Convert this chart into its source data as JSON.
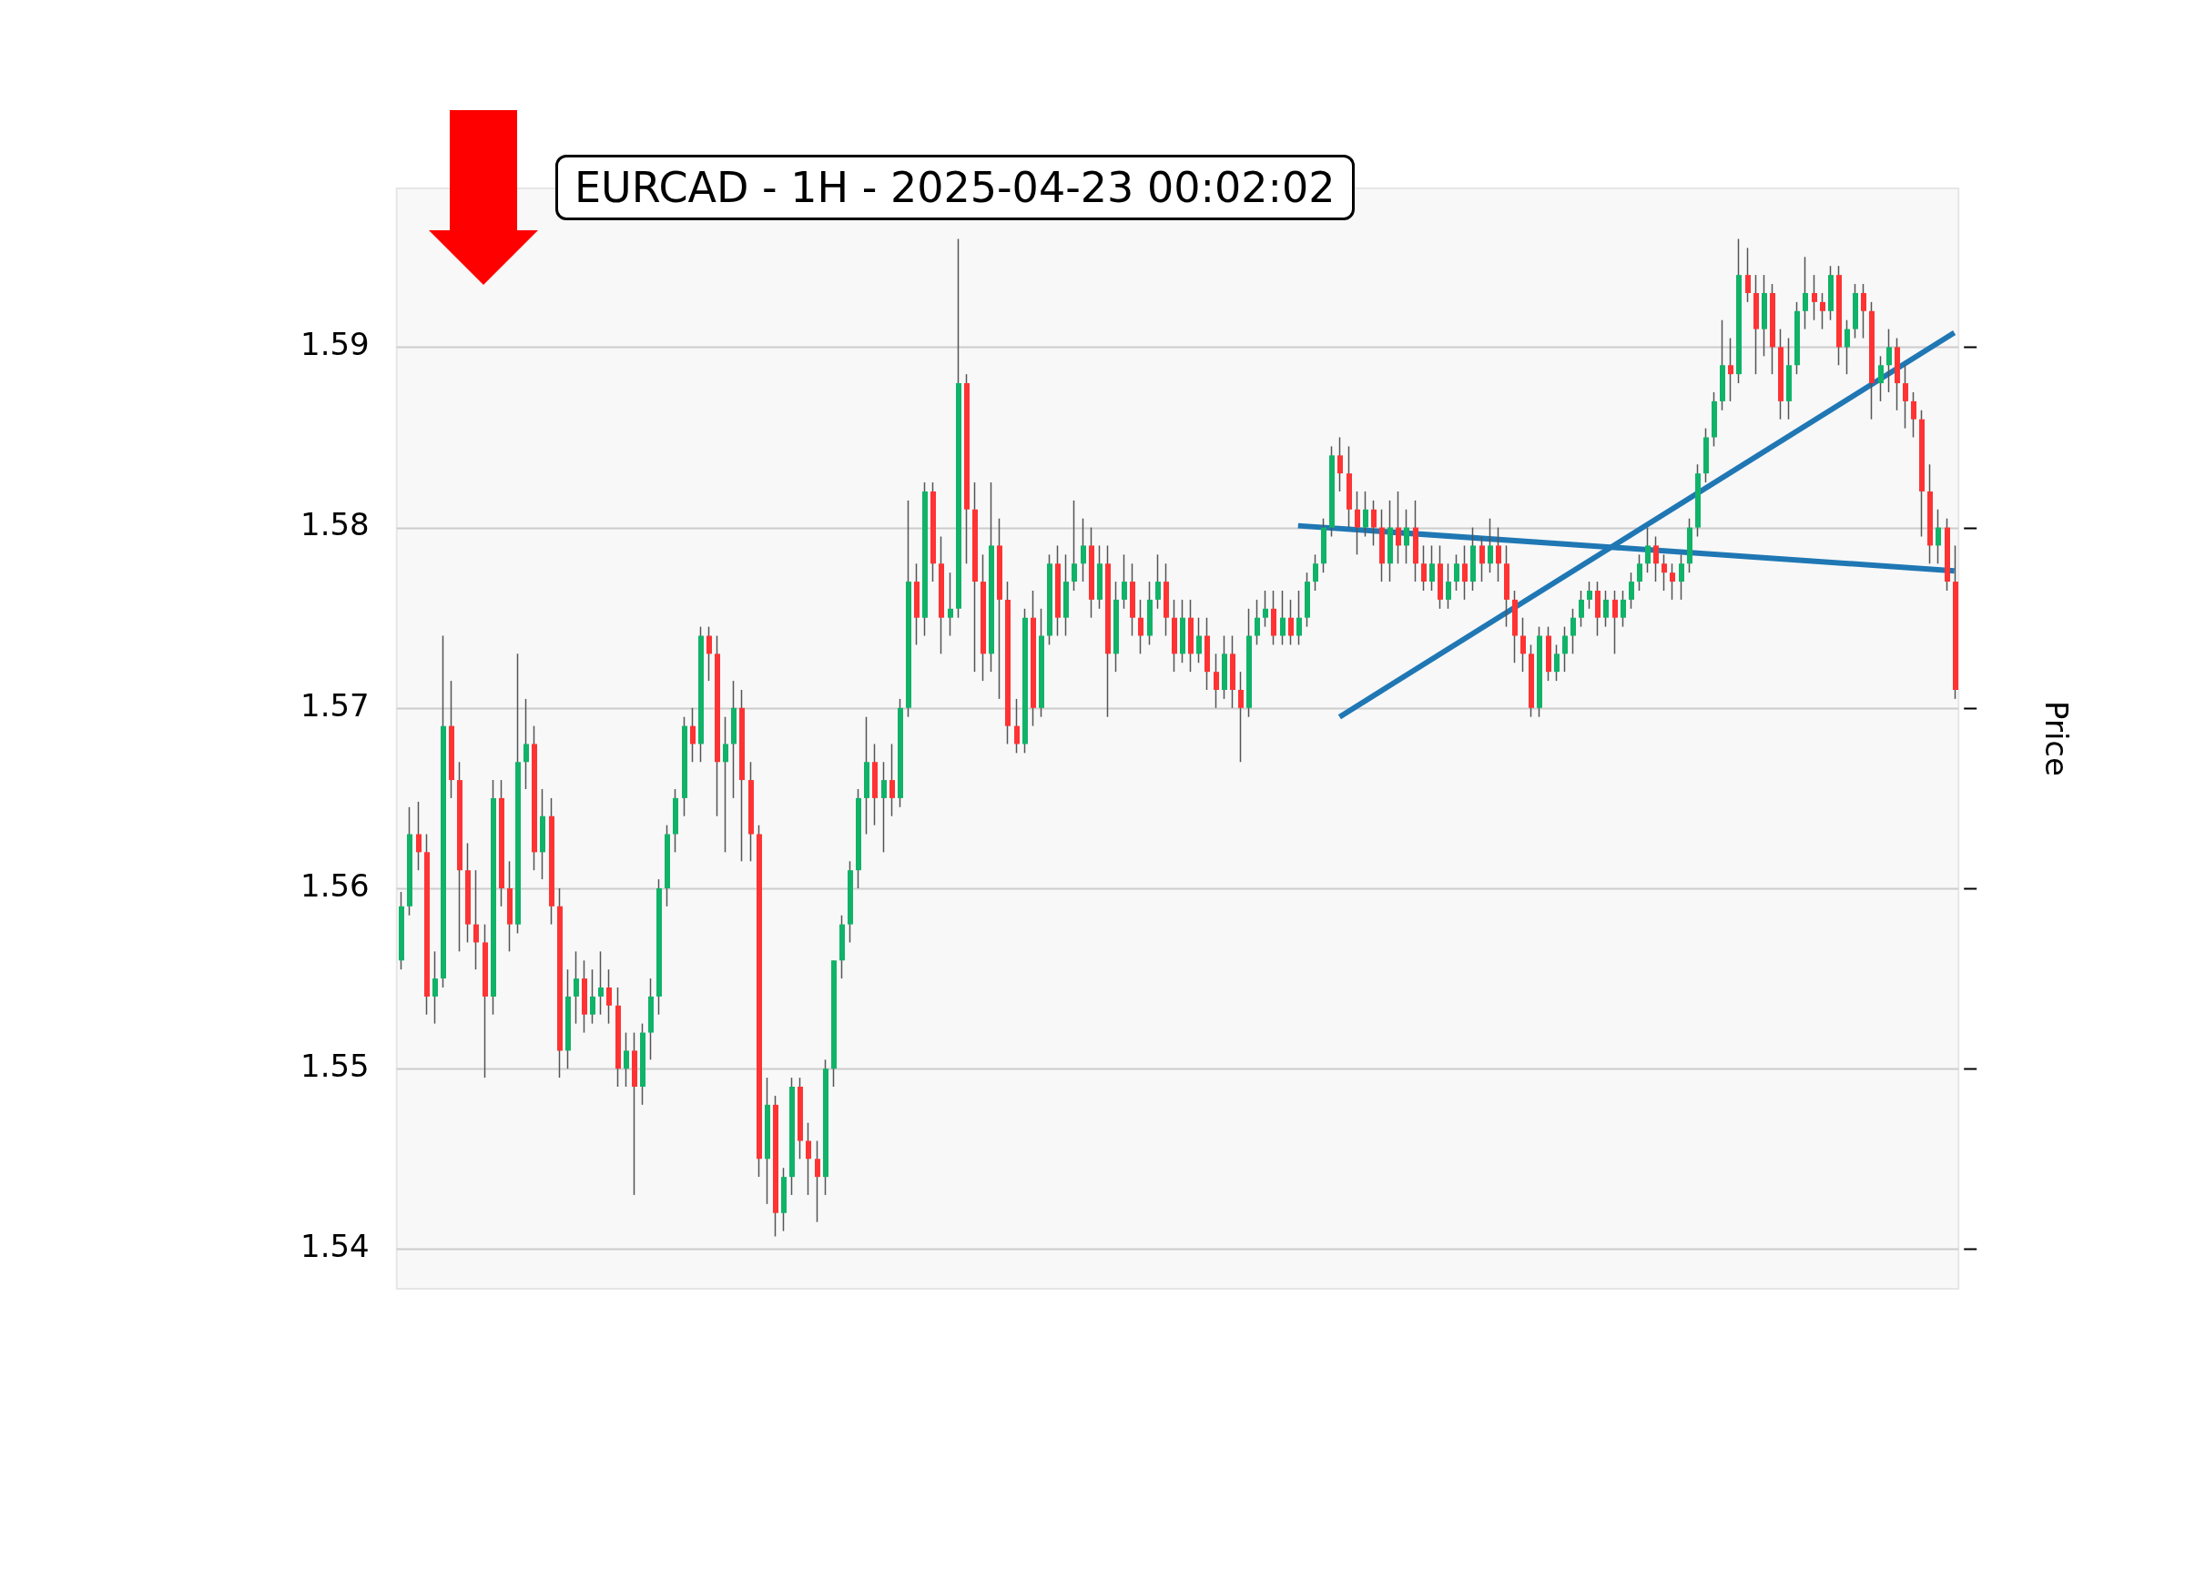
{
  "chart_data": {
    "type": "candlestick",
    "title": "EURCAD - 1H - 2025-04-23 00:02:02",
    "ylabel": "Price",
    "categories": [
      null,
      null,
      null,
      null,
      null,
      null,
      null,
      null,
      null,
      null,
      null,
      null,
      null,
      null,
      null,
      null,
      null,
      null,
      null,
      null,
      null,
      null,
      null,
      null,
      null,
      null,
      null,
      null,
      null,
      null,
      null,
      null,
      null,
      null,
      null,
      null,
      null,
      null,
      null,
      null,
      null,
      null,
      null,
      null,
      null,
      null,
      null,
      null,
      null,
      null,
      null,
      null,
      null,
      null,
      null,
      null,
      null,
      null,
      null,
      null,
      null,
      null,
      null,
      null,
      null,
      null,
      null,
      null,
      null,
      null,
      null,
      null,
      null,
      null,
      null,
      null,
      null,
      null,
      null,
      null,
      null,
      null,
      null,
      null,
      null,
      null,
      null,
      null,
      null,
      null,
      null,
      null,
      null,
      null,
      null,
      null,
      null,
      null,
      null,
      null,
      null,
      null,
      null,
      null,
      null,
      null,
      null,
      null,
      null,
      null,
      null,
      null,
      null,
      null,
      null,
      null,
      null,
      null,
      null,
      null,
      null,
      null,
      null,
      null,
      null,
      null,
      null,
      null,
      null,
      null,
      null,
      null,
      null,
      null,
      null,
      null,
      null,
      null,
      null,
      null,
      null,
      null,
      null,
      null,
      null,
      null,
      null,
      null,
      null,
      null,
      null,
      null,
      null,
      null,
      null,
      null,
      null,
      null,
      null,
      null,
      null,
      null,
      null,
      null,
      null,
      null,
      null,
      null,
      null,
      null,
      null,
      null,
      null,
      null,
      null,
      null,
      null,
      null,
      null,
      null,
      null,
      null,
      null,
      null,
      null,
      null,
      null,
      null
    ],
    "ohlc": [
      [
        1.556,
        1.5598,
        1.5555,
        1.559
      ],
      [
        1.559,
        1.5645,
        1.5585,
        1.563
      ],
      [
        1.563,
        1.5648,
        1.561,
        1.562
      ],
      [
        1.562,
        1.563,
        1.553,
        1.554
      ],
      [
        1.554,
        1.5565,
        1.5525,
        1.555
      ],
      [
        1.555,
        1.574,
        1.5545,
        1.569
      ],
      [
        1.569,
        1.5715,
        1.565,
        1.566
      ],
      [
        1.566,
        1.567,
        1.5565,
        1.561
      ],
      [
        1.561,
        1.5625,
        1.557,
        1.558
      ],
      [
        1.558,
        1.561,
        1.5555,
        1.557
      ],
      [
        1.557,
        1.558,
        1.5495,
        1.554
      ],
      [
        1.554,
        1.566,
        1.553,
        1.565
      ],
      [
        1.565,
        1.566,
        1.559,
        1.56
      ],
      [
        1.56,
        1.5615,
        1.5565,
        1.558
      ],
      [
        1.558,
        1.573,
        1.5575,
        1.567
      ],
      [
        1.567,
        1.5705,
        1.5655,
        1.568
      ],
      [
        1.568,
        1.569,
        1.561,
        1.562
      ],
      [
        1.562,
        1.5655,
        1.5605,
        1.564
      ],
      [
        1.564,
        1.565,
        1.558,
        1.559
      ],
      [
        1.559,
        1.56,
        1.5495,
        1.551
      ],
      [
        1.551,
        1.5555,
        1.55,
        1.554
      ],
      [
        1.554,
        1.5565,
        1.5525,
        1.555
      ],
      [
        1.555,
        1.556,
        1.552,
        1.553
      ],
      [
        1.553,
        1.5555,
        1.5525,
        1.554
      ],
      [
        1.554,
        1.5565,
        1.553,
        1.5545
      ],
      [
        1.5545,
        1.5555,
        1.5525,
        1.5535
      ],
      [
        1.5535,
        1.5545,
        1.549,
        1.55
      ],
      [
        1.55,
        1.552,
        1.549,
        1.551
      ],
      [
        1.551,
        1.552,
        1.543,
        1.549
      ],
      [
        1.549,
        1.5525,
        1.548,
        1.552
      ],
      [
        1.552,
        1.555,
        1.5505,
        1.554
      ],
      [
        1.554,
        1.5605,
        1.553,
        1.56
      ],
      [
        1.56,
        1.5635,
        1.559,
        1.563
      ],
      [
        1.563,
        1.5655,
        1.562,
        1.565
      ],
      [
        1.565,
        1.5695,
        1.564,
        1.569
      ],
      [
        1.569,
        1.57,
        1.567,
        1.568
      ],
      [
        1.568,
        1.5745,
        1.567,
        1.574
      ],
      [
        1.574,
        1.5745,
        1.5715,
        1.573
      ],
      [
        1.573,
        1.574,
        1.564,
        1.567
      ],
      [
        1.567,
        1.5695,
        1.562,
        1.568
      ],
      [
        1.568,
        1.5715,
        1.565,
        1.57
      ],
      [
        1.57,
        1.571,
        1.5615,
        1.566
      ],
      [
        1.566,
        1.567,
        1.5615,
        1.563
      ],
      [
        1.563,
        1.5635,
        1.544,
        1.545
      ],
      [
        1.545,
        1.5495,
        1.5425,
        1.548
      ],
      [
        1.548,
        1.5485,
        1.5407,
        1.542
      ],
      [
        1.542,
        1.5445,
        1.541,
        1.544
      ],
      [
        1.544,
        1.5495,
        1.543,
        1.549
      ],
      [
        1.549,
        1.5495,
        1.545,
        1.546
      ],
      [
        1.546,
        1.547,
        1.543,
        1.545
      ],
      [
        1.545,
        1.546,
        1.5415,
        1.544
      ],
      [
        1.544,
        1.5505,
        1.543,
        1.55
      ],
      [
        1.55,
        1.556,
        1.549,
        1.556
      ],
      [
        1.556,
        1.5585,
        1.555,
        1.558
      ],
      [
        1.558,
        1.5615,
        1.557,
        1.561
      ],
      [
        1.561,
        1.5655,
        1.56,
        1.565
      ],
      [
        1.565,
        1.5695,
        1.563,
        1.567
      ],
      [
        1.567,
        1.568,
        1.5635,
        1.565
      ],
      [
        1.565,
        1.567,
        1.562,
        1.566
      ],
      [
        1.566,
        1.568,
        1.564,
        1.565
      ],
      [
        1.565,
        1.5705,
        1.5645,
        1.57
      ],
      [
        1.57,
        1.5815,
        1.5695,
        1.577
      ],
      [
        1.577,
        1.578,
        1.5735,
        1.575
      ],
      [
        1.575,
        1.5825,
        1.574,
        1.582
      ],
      [
        1.582,
        1.5825,
        1.577,
        1.578
      ],
      [
        1.578,
        1.5795,
        1.573,
        1.575
      ],
      [
        1.575,
        1.5775,
        1.574,
        1.5755
      ],
      [
        1.5755,
        1.596,
        1.575,
        1.588
      ],
      [
        1.588,
        1.5885,
        1.578,
        1.581
      ],
      [
        1.581,
        1.5825,
        1.572,
        1.577
      ],
      [
        1.577,
        1.5785,
        1.5715,
        1.573
      ],
      [
        1.573,
        1.5825,
        1.572,
        1.579
      ],
      [
        1.579,
        1.5805,
        1.5705,
        1.576
      ],
      [
        1.576,
        1.577,
        1.568,
        1.569
      ],
      [
        1.569,
        1.5705,
        1.5675,
        1.568
      ],
      [
        1.568,
        1.5755,
        1.5675,
        1.575
      ],
      [
        1.575,
        1.5765,
        1.569,
        1.57
      ],
      [
        1.57,
        1.5755,
        1.5695,
        1.574
      ],
      [
        1.574,
        1.5785,
        1.5735,
        1.578
      ],
      [
        1.578,
        1.579,
        1.574,
        1.575
      ],
      [
        1.575,
        1.5785,
        1.574,
        1.577
      ],
      [
        1.577,
        1.5815,
        1.5765,
        1.578
      ],
      [
        1.578,
        1.5805,
        1.577,
        1.579
      ],
      [
        1.579,
        1.58,
        1.575,
        1.576
      ],
      [
        1.576,
        1.579,
        1.5755,
        1.578
      ],
      [
        1.578,
        1.579,
        1.5695,
        1.573
      ],
      [
        1.573,
        1.577,
        1.572,
        1.576
      ],
      [
        1.576,
        1.5785,
        1.5755,
        1.577
      ],
      [
        1.577,
        1.578,
        1.574,
        1.575
      ],
      [
        1.575,
        1.576,
        1.573,
        1.574
      ],
      [
        1.574,
        1.577,
        1.5735,
        1.576
      ],
      [
        1.576,
        1.5785,
        1.5755,
        1.577
      ],
      [
        1.577,
        1.578,
        1.574,
        1.575
      ],
      [
        1.575,
        1.576,
        1.572,
        1.573
      ],
      [
        1.573,
        1.576,
        1.5725,
        1.575
      ],
      [
        1.575,
        1.576,
        1.572,
        1.573
      ],
      [
        1.573,
        1.575,
        1.5725,
        1.574
      ],
      [
        1.574,
        1.575,
        1.571,
        1.572
      ],
      [
        1.572,
        1.573,
        1.57,
        1.571
      ],
      [
        1.571,
        1.574,
        1.5705,
        1.573
      ],
      [
        1.573,
        1.574,
        1.57,
        1.571
      ],
      [
        1.571,
        1.572,
        1.567,
        1.57
      ],
      [
        1.57,
        1.5755,
        1.5695,
        1.574
      ],
      [
        1.574,
        1.576,
        1.5735,
        1.575
      ],
      [
        1.575,
        1.5765,
        1.5745,
        1.5755
      ],
      [
        1.5755,
        1.5765,
        1.5735,
        1.574
      ],
      [
        1.574,
        1.5765,
        1.5735,
        1.575
      ],
      [
        1.575,
        1.576,
        1.5735,
        1.574
      ],
      [
        1.574,
        1.5765,
        1.5735,
        1.575
      ],
      [
        1.575,
        1.5775,
        1.5745,
        1.577
      ],
      [
        1.577,
        1.5785,
        1.5765,
        1.578
      ],
      [
        1.578,
        1.5805,
        1.5775,
        1.58
      ],
      [
        1.58,
        1.5845,
        1.5795,
        1.584
      ],
      [
        1.584,
        1.585,
        1.582,
        1.583
      ],
      [
        1.583,
        1.5845,
        1.58,
        1.581
      ],
      [
        1.581,
        1.582,
        1.5785,
        1.58
      ],
      [
        1.58,
        1.582,
        1.5795,
        1.581
      ],
      [
        1.581,
        1.5815,
        1.579,
        1.58
      ],
      [
        1.58,
        1.581,
        1.577,
        1.578
      ],
      [
        1.578,
        1.5815,
        1.577,
        1.58
      ],
      [
        1.58,
        1.582,
        1.578,
        1.579
      ],
      [
        1.579,
        1.581,
        1.578,
        1.58
      ],
      [
        1.58,
        1.5815,
        1.577,
        1.578
      ],
      [
        1.578,
        1.579,
        1.5765,
        1.577
      ],
      [
        1.577,
        1.579,
        1.5765,
        1.578
      ],
      [
        1.578,
        1.579,
        1.5755,
        1.576
      ],
      [
        1.576,
        1.578,
        1.5755,
        1.577
      ],
      [
        1.577,
        1.5785,
        1.5765,
        1.578
      ],
      [
        1.578,
        1.579,
        1.576,
        1.577
      ],
      [
        1.577,
        1.58,
        1.5765,
        1.579
      ],
      [
        1.579,
        1.5795,
        1.577,
        1.578
      ],
      [
        1.578,
        1.5805,
        1.5775,
        1.579
      ],
      [
        1.579,
        1.58,
        1.577,
        1.578
      ],
      [
        1.578,
        1.579,
        1.5745,
        1.576
      ],
      [
        1.576,
        1.5765,
        1.5725,
        1.574
      ],
      [
        1.574,
        1.575,
        1.572,
        1.573
      ],
      [
        1.573,
        1.5735,
        1.5695,
        1.57
      ],
      [
        1.57,
        1.5745,
        1.5695,
        1.574
      ],
      [
        1.574,
        1.5745,
        1.5715,
        1.572
      ],
      [
        1.572,
        1.5735,
        1.5715,
        1.573
      ],
      [
        1.573,
        1.5745,
        1.572,
        1.574
      ],
      [
        1.574,
        1.5755,
        1.573,
        1.575
      ],
      [
        1.575,
        1.5765,
        1.5745,
        1.576
      ],
      [
        1.576,
        1.577,
        1.5755,
        1.5765
      ],
      [
        1.5765,
        1.577,
        1.574,
        1.575
      ],
      [
        1.575,
        1.5765,
        1.5745,
        1.576
      ],
      [
        1.576,
        1.5765,
        1.573,
        1.575
      ],
      [
        1.575,
        1.5765,
        1.5745,
        1.576
      ],
      [
        1.576,
        1.5775,
        1.5755,
        1.577
      ],
      [
        1.577,
        1.5785,
        1.5765,
        1.578
      ],
      [
        1.578,
        1.58,
        1.5775,
        1.579
      ],
      [
        1.579,
        1.5795,
        1.577,
        1.578
      ],
      [
        1.578,
        1.5785,
        1.5765,
        1.5775
      ],
      [
        1.5775,
        1.578,
        1.576,
        1.577
      ],
      [
        1.577,
        1.5785,
        1.576,
        1.578
      ],
      [
        1.578,
        1.5805,
        1.5775,
        1.58
      ],
      [
        1.58,
        1.5835,
        1.5795,
        1.583
      ],
      [
        1.583,
        1.5855,
        1.5825,
        1.585
      ],
      [
        1.585,
        1.5875,
        1.5845,
        1.587
      ],
      [
        1.587,
        1.5915,
        1.5865,
        1.589
      ],
      [
        1.589,
        1.5905,
        1.587,
        1.5885
      ],
      [
        1.5885,
        1.596,
        1.588,
        1.594
      ],
      [
        1.594,
        1.5955,
        1.5925,
        1.593
      ],
      [
        1.593,
        1.594,
        1.5885,
        1.591
      ],
      [
        1.591,
        1.594,
        1.5895,
        1.593
      ],
      [
        1.593,
        1.5935,
        1.5885,
        1.59
      ],
      [
        1.59,
        1.591,
        1.586,
        1.587
      ],
      [
        1.587,
        1.5905,
        1.586,
        1.589
      ],
      [
        1.589,
        1.5925,
        1.5885,
        1.592
      ],
      [
        1.592,
        1.595,
        1.591,
        1.593
      ],
      [
        1.593,
        1.594,
        1.5915,
        1.5925
      ],
      [
        1.5925,
        1.593,
        1.591,
        1.592
      ],
      [
        1.592,
        1.5945,
        1.5915,
        1.594
      ],
      [
        1.594,
        1.5945,
        1.589,
        1.59
      ],
      [
        1.59,
        1.5915,
        1.5885,
        1.591
      ],
      [
        1.591,
        1.5935,
        1.5905,
        1.593
      ],
      [
        1.593,
        1.5935,
        1.5905,
        1.592
      ],
      [
        1.592,
        1.5925,
        1.586,
        1.588
      ],
      [
        1.588,
        1.5895,
        1.587,
        1.589
      ],
      [
        1.589,
        1.591,
        1.5875,
        1.59
      ],
      [
        1.59,
        1.5905,
        1.5865,
        1.588
      ],
      [
        1.588,
        1.589,
        1.5855,
        1.587
      ],
      [
        1.587,
        1.5875,
        1.585,
        1.586
      ],
      [
        1.586,
        1.5865,
        1.5795,
        1.582
      ],
      [
        1.582,
        1.5835,
        1.578,
        1.579
      ],
      [
        1.579,
        1.581,
        1.578,
        1.58
      ],
      [
        1.58,
        1.5805,
        1.5765,
        1.577
      ],
      [
        1.577,
        1.579,
        1.5705,
        1.571
      ]
    ],
    "series": [
      {
        "type": "line",
        "color": "#1f77b4",
        "values": [
          null,
          null,
          null,
          null,
          null,
          null,
          null,
          null,
          null,
          null,
          null,
          null,
          null,
          null,
          null,
          null,
          null,
          null,
          null,
          null,
          null,
          null,
          null,
          null,
          null,
          null,
          null,
          null,
          null,
          null,
          null,
          null,
          null,
          null,
          null,
          null,
          null,
          null,
          null,
          null,
          null,
          null,
          null,
          null,
          null,
          null,
          null,
          null,
          null,
          null,
          null,
          null,
          null,
          null,
          null,
          null,
          null,
          null,
          null,
          null,
          null,
          null,
          null,
          null,
          null,
          null,
          null,
          null,
          null,
          null,
          null,
          null,
          null,
          null,
          null,
          null,
          null,
          null,
          null,
          null,
          null,
          null,
          null,
          null,
          null,
          null,
          null,
          null,
          null,
          null,
          null,
          null,
          null,
          null,
          null,
          null,
          null,
          null,
          null,
          null,
          null,
          null,
          null,
          null,
          null,
          null,
          null,
          null,
          1.5801,
          null,
          null,
          null,
          null,
          null,
          null,
          null,
          null,
          null,
          null,
          null,
          null,
          null,
          null,
          null,
          null,
          null,
          null,
          null,
          null,
          null,
          null,
          null,
          null,
          null,
          null,
          null,
          null,
          null,
          null,
          null,
          null,
          null,
          null,
          null,
          null,
          null,
          null,
          null,
          null,
          null,
          null,
          null,
          null,
          null,
          null,
          null,
          null,
          null,
          null,
          null,
          null,
          null,
          null,
          null,
          null,
          null,
          null,
          null,
          null,
          null,
          null,
          null,
          null,
          null,
          null,
          null,
          null,
          null,
          null,
          null,
          null,
          null,
          null,
          null,
          null,
          null,
          null,
          1.5776
        ]
      },
      {
        "type": "line",
        "color": "#1f77b4",
        "values": [
          null,
          null,
          null,
          null,
          null,
          null,
          null,
          null,
          null,
          null,
          null,
          null,
          null,
          null,
          null,
          null,
          null,
          null,
          null,
          null,
          null,
          null,
          null,
          null,
          null,
          null,
          null,
          null,
          null,
          null,
          null,
          null,
          null,
          null,
          null,
          null,
          null,
          null,
          null,
          null,
          null,
          null,
          null,
          null,
          null,
          null,
          null,
          null,
          null,
          null,
          null,
          null,
          null,
          null,
          null,
          null,
          null,
          null,
          null,
          null,
          null,
          null,
          null,
          null,
          null,
          null,
          null,
          null,
          null,
          null,
          null,
          null,
          null,
          null,
          null,
          null,
          null,
          null,
          null,
          null,
          null,
          null,
          null,
          null,
          null,
          null,
          null,
          null,
          null,
          null,
          null,
          null,
          null,
          null,
          null,
          null,
          null,
          null,
          null,
          null,
          null,
          null,
          null,
          null,
          null,
          null,
          null,
          null,
          null,
          null,
          null,
          null,
          null,
          1.5695,
          null,
          null,
          null,
          null,
          null,
          null,
          null,
          null,
          null,
          null,
          null,
          null,
          null,
          null,
          null,
          null,
          null,
          null,
          null,
          null,
          null,
          null,
          null,
          null,
          null,
          null,
          null,
          null,
          null,
          null,
          null,
          null,
          null,
          null,
          null,
          null,
          null,
          null,
          null,
          null,
          null,
          null,
          null,
          null,
          null,
          null,
          null,
          null,
          null,
          null,
          null,
          null,
          null,
          null,
          null,
          null,
          null,
          null,
          null,
          null,
          null,
          null,
          null,
          null,
          null,
          null,
          null,
          null,
          null,
          null,
          null,
          null,
          null,
          1.5908
        ]
      }
    ],
    "ylim": [
      1.5378,
      1.5988
    ],
    "yticks": [
      1.54,
      1.55,
      1.56,
      1.57,
      1.58,
      1.59
    ],
    "grid": "y",
    "tick_labels": "y",
    "legend": false
  }
}
